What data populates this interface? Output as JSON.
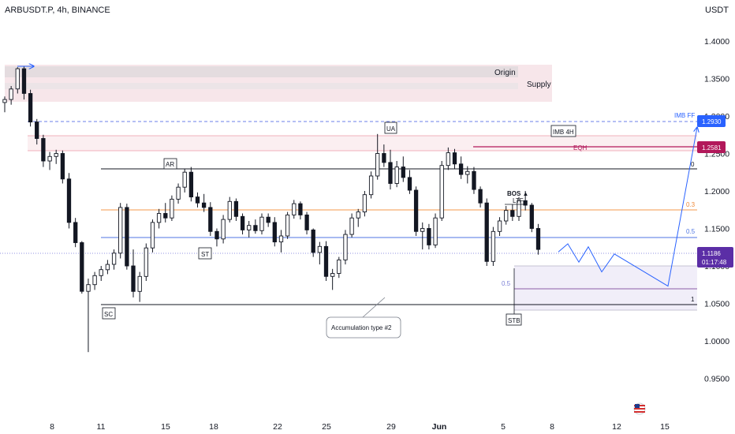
{
  "chart_data": {
    "type": "candlestick",
    "title": "ARBUSDT.P, 4h, BINANCE",
    "currency": "USDT",
    "ylim": [
      0.9,
      1.44
    ],
    "y_ticks": [
      "1.4000",
      "1.3500",
      "1.3000",
      "1.2500",
      "1.2000",
      "1.1500",
      "1.1000",
      "1.0500",
      "1.0000",
      "0.9500"
    ],
    "x_ticks": [
      "8",
      "11",
      "15",
      "18",
      "22",
      "25",
      "29",
      "Jun",
      "5",
      "8",
      "12",
      "15"
    ],
    "price_labels": {
      "imb": "1.2930",
      "eqh": "1.2581",
      "last": "1.1186",
      "countdown": "01:17:48"
    },
    "zone_labels": {
      "origin": "Origin",
      "supply": "Supply",
      "imb_ff": "IMB FF",
      "imb_4h": "IMB 4H",
      "eqh": "EQH",
      "bos": "BOS ▲",
      "ltf": "LTF",
      "accumulation": "Accumulation type #2"
    },
    "event_labels": {
      "ar": "AR",
      "st": "ST",
      "sc": "SC",
      "ut": "UA",
      "stb": "STB"
    },
    "fib_levels": {
      "f0": "0",
      "f03": "0.3",
      "f05": "0.5",
      "f1": "1",
      "z05": "0.5"
    },
    "levels": {
      "ar_high": 1.231,
      "fib_03": 1.1765,
      "fib_05": 1.1415,
      "sc_low": 1.0505,
      "eqh": 1.2581,
      "imb_top": 1.2705,
      "imb_ff": 1.293,
      "last": 1.1186
    },
    "projection": [
      1.1186,
      1.1295,
      1.105,
      1.1255,
      1.092,
      1.116,
      1.073,
      1.285
    ],
    "candles": [
      [
        1.318,
        1.326,
        1.305,
        1.322
      ],
      [
        1.322,
        1.34,
        1.315,
        1.336
      ],
      [
        1.336,
        1.365,
        1.33,
        1.363
      ],
      [
        1.363,
        1.366,
        1.322,
        1.33
      ],
      [
        1.33,
        1.335,
        1.286,
        1.292
      ],
      [
        1.292,
        1.296,
        1.262,
        1.27
      ],
      [
        1.27,
        1.275,
        1.232,
        1.24
      ],
      [
        1.24,
        1.252,
        1.228,
        1.246
      ],
      [
        1.246,
        1.255,
        1.236,
        1.25
      ],
      [
        1.25,
        1.254,
        1.21,
        1.216
      ],
      [
        1.216,
        1.224,
        1.15,
        1.158
      ],
      [
        1.158,
        1.164,
        1.125,
        1.131
      ],
      [
        1.131,
        1.133,
        1.063,
        1.066
      ],
      [
        1.066,
        1.083,
        0.985,
        1.075
      ],
      [
        1.075,
        1.092,
        1.068,
        1.087
      ],
      [
        1.087,
        1.1,
        1.08,
        1.095
      ],
      [
        1.095,
        1.108,
        1.089,
        1.102
      ],
      [
        1.102,
        1.122,
        1.095,
        1.117
      ],
      [
        1.117,
        1.184,
        1.11,
        1.178
      ],
      [
        1.178,
        1.183,
        1.095,
        1.1
      ],
      [
        1.1,
        1.122,
        1.058,
        1.066
      ],
      [
        1.066,
        1.092,
        1.052,
        1.086
      ],
      [
        1.086,
        1.13,
        1.08,
        1.124
      ],
      [
        1.124,
        1.162,
        1.118,
        1.158
      ],
      [
        1.158,
        1.176,
        1.15,
        1.17
      ],
      [
        1.17,
        1.184,
        1.158,
        1.164
      ],
      [
        1.164,
        1.194,
        1.16,
        1.189
      ],
      [
        1.189,
        1.21,
        1.183,
        1.205
      ],
      [
        1.205,
        1.23,
        1.198,
        1.225
      ],
      [
        1.225,
        1.232,
        1.186,
        1.192
      ],
      [
        1.192,
        1.198,
        1.178,
        1.184
      ],
      [
        1.184,
        1.196,
        1.172,
        1.178
      ],
      [
        1.178,
        1.185,
        1.14,
        1.146
      ],
      [
        1.146,
        1.15,
        1.126,
        1.136
      ],
      [
        1.136,
        1.168,
        1.13,
        1.162
      ],
      [
        1.162,
        1.192,
        1.158,
        1.186
      ],
      [
        1.186,
        1.19,
        1.16,
        1.166
      ],
      [
        1.166,
        1.17,
        1.142,
        1.148
      ],
      [
        1.148,
        1.16,
        1.138,
        1.154
      ],
      [
        1.154,
        1.162,
        1.143,
        1.147
      ],
      [
        1.147,
        1.17,
        1.142,
        1.165
      ],
      [
        1.165,
        1.17,
        1.152,
        1.158
      ],
      [
        1.158,
        1.165,
        1.126,
        1.132
      ],
      [
        1.132,
        1.148,
        1.118,
        1.14
      ],
      [
        1.14,
        1.172,
        1.136,
        1.168
      ],
      [
        1.168,
        1.188,
        1.163,
        1.183
      ],
      [
        1.183,
        1.186,
        1.162,
        1.168
      ],
      [
        1.168,
        1.172,
        1.142,
        1.148
      ],
      [
        1.148,
        1.15,
        1.112,
        1.118
      ],
      [
        1.118,
        1.132,
        1.102,
        1.126
      ],
      [
        1.126,
        1.133,
        1.08,
        1.086
      ],
      [
        1.086,
        1.096,
        1.068,
        1.09
      ],
      [
        1.09,
        1.112,
        1.084,
        1.108
      ],
      [
        1.108,
        1.148,
        1.102,
        1.142
      ],
      [
        1.142,
        1.17,
        1.138,
        1.164
      ],
      [
        1.164,
        1.176,
        1.152,
        1.172
      ],
      [
        1.172,
        1.2,
        1.166,
        1.195
      ],
      [
        1.195,
        1.226,
        1.19,
        1.22
      ],
      [
        1.22,
        1.276,
        1.215,
        1.25
      ],
      [
        1.25,
        1.262,
        1.232,
        1.238
      ],
      [
        1.238,
        1.255,
        1.202,
        1.21
      ],
      [
        1.21,
        1.24,
        1.205,
        1.232
      ],
      [
        1.232,
        1.246,
        1.212,
        1.218
      ],
      [
        1.218,
        1.228,
        1.196,
        1.201
      ],
      [
        1.201,
        1.206,
        1.14,
        1.146
      ],
      [
        1.146,
        1.158,
        1.122,
        1.15
      ],
      [
        1.15,
        1.156,
        1.122,
        1.128
      ],
      [
        1.128,
        1.17,
        1.124,
        1.164
      ],
      [
        1.164,
        1.24,
        1.16,
        1.234
      ],
      [
        1.234,
        1.258,
        1.228,
        1.251
      ],
      [
        1.251,
        1.256,
        1.23,
        1.236
      ],
      [
        1.236,
        1.246,
        1.216,
        1.222
      ],
      [
        1.222,
        1.233,
        1.21,
        1.226
      ],
      [
        1.226,
        1.232,
        1.196,
        1.202
      ],
      [
        1.202,
        1.206,
        1.178,
        1.184
      ],
      [
        1.184,
        1.19,
        1.1,
        1.106
      ],
      [
        1.106,
        1.152,
        1.1,
        1.146
      ],
      [
        1.146,
        1.165,
        1.14,
        1.16
      ],
      [
        1.16,
        1.18,
        1.155,
        1.174
      ],
      [
        1.174,
        1.182,
        1.16,
        1.166
      ],
      [
        1.166,
        1.192,
        1.16,
        1.187
      ],
      [
        1.187,
        1.2,
        1.174,
        1.181
      ],
      [
        1.181,
        1.184,
        1.145,
        1.15
      ],
      [
        1.15,
        1.156,
        1.115,
        1.122
      ]
    ]
  }
}
